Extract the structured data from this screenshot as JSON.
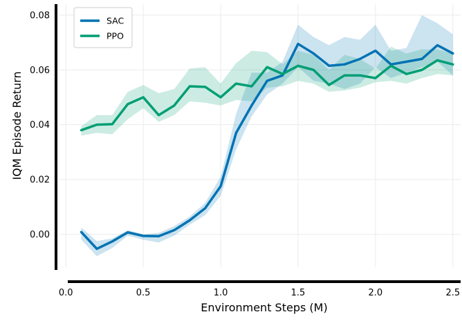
{
  "chart_data": {
    "type": "line",
    "title": "",
    "xlabel": "Environment Steps (M)",
    "ylabel": "IQM Episode Return",
    "xlim": [
      -0.05,
      2.55
    ],
    "ylim": [
      -0.012,
      0.084
    ],
    "x_ticks": [
      0.0,
      0.5,
      1.0,
      1.5,
      2.0,
      2.5
    ],
    "x_tick_labels": [
      "0.0",
      "0.5",
      "1.0",
      "1.5",
      "2.0",
      "2.5"
    ],
    "y_ticks": [
      0.0,
      0.02,
      0.04,
      0.06,
      0.08
    ],
    "y_tick_labels": [
      "0.00",
      "0.02",
      "0.04",
      "0.06",
      "0.08"
    ],
    "grid": true,
    "legend_position": "top-left",
    "x": [
      0.1,
      0.2,
      0.3,
      0.4,
      0.5,
      0.6,
      0.7,
      0.8,
      0.9,
      1.0,
      1.1,
      1.2,
      1.3,
      1.4,
      1.5,
      1.6,
      1.7,
      1.8,
      1.9,
      2.0,
      2.1,
      2.2,
      2.3,
      2.4,
      2.5
    ],
    "series": [
      {
        "name": "SAC",
        "color": "#0072B2",
        "values": [
          0.0008,
          -0.0053,
          -0.0026,
          0.0007,
          -0.0006,
          -0.0007,
          0.0015,
          0.0051,
          0.0095,
          0.0175,
          0.037,
          0.047,
          0.056,
          0.058,
          0.0695,
          0.066,
          0.0615,
          0.062,
          0.064,
          0.067,
          0.062,
          0.063,
          0.064,
          0.069,
          0.066
        ],
        "lower": [
          -0.002,
          -0.008,
          -0.005,
          -0.0005,
          -0.002,
          -0.003,
          -0.0005,
          0.0035,
          0.007,
          0.014,
          0.031,
          0.043,
          0.051,
          0.055,
          0.061,
          0.056,
          0.055,
          0.053,
          0.055,
          0.061,
          0.057,
          0.059,
          0.061,
          0.063,
          0.058
        ],
        "upper": [
          0.0025,
          -0.0025,
          -0.0015,
          0.0015,
          0.0,
          0.0005,
          0.003,
          0.0065,
          0.0115,
          0.021,
          0.044,
          0.059,
          0.059,
          0.063,
          0.0765,
          0.072,
          0.069,
          0.072,
          0.071,
          0.0765,
          0.067,
          0.068,
          0.08,
          0.077,
          0.073
        ]
      },
      {
        "name": "PPO",
        "color": "#009E73",
        "values": [
          0.038,
          0.04,
          0.0402,
          0.0475,
          0.05,
          0.0435,
          0.047,
          0.054,
          0.0538,
          0.05,
          0.055,
          0.054,
          0.061,
          0.0585,
          0.0615,
          0.06,
          0.0545,
          0.058,
          0.058,
          0.057,
          0.0615,
          0.0585,
          0.06,
          0.0635,
          0.062
        ],
        "lower": [
          0.036,
          0.037,
          0.0365,
          0.042,
          0.046,
          0.041,
          0.0435,
          0.0485,
          0.048,
          0.047,
          0.049,
          0.0485,
          0.0535,
          0.054,
          0.056,
          0.055,
          0.052,
          0.0525,
          0.0535,
          0.0555,
          0.056,
          0.055,
          0.057,
          0.0585,
          0.058
        ],
        "upper": [
          0.0395,
          0.0435,
          0.0435,
          0.052,
          0.0545,
          0.0515,
          0.053,
          0.0605,
          0.061,
          0.055,
          0.0625,
          0.067,
          0.0665,
          0.062,
          0.067,
          0.0655,
          0.06,
          0.0655,
          0.064,
          0.0605,
          0.0685,
          0.066,
          0.0675,
          0.0675,
          0.066
        ]
      }
    ]
  }
}
